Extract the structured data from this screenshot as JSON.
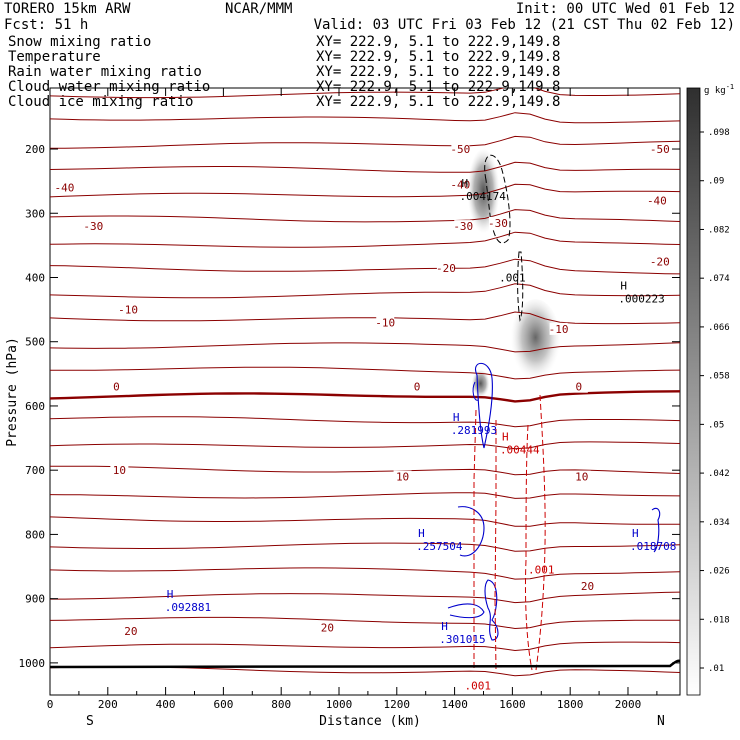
{
  "header": {
    "model": "TORERO  15km ARW",
    "center": "NCAR/MMM",
    "init": "Init: 00 UTC Wed 01 Feb 12",
    "fcst": "Fcst:   51 h",
    "valid": "Valid: 03 UTC Fri 03 Feb 12 (21 CST Thu 02 Feb 12)"
  },
  "fields": [
    {
      "name": "Snow mixing ratio",
      "xy": "XY= 222.9,  5.1 to 222.9,149.8",
      "color": "#000000",
      "xy_color": "#000000"
    },
    {
      "name": "Temperature",
      "xy": "XY= 222.9,  5.1 to 222.9,149.8",
      "color": "#8b0000",
      "xy_color": "#cc0000"
    },
    {
      "name": "Rain water mixing ratio",
      "xy": "XY= 222.9,  5.1 to 222.9,149.8",
      "color": "#cc0000",
      "xy_color": "#cc0000"
    },
    {
      "name": "Cloud water mixing ratio",
      "xy": "XY= 222.9,  5.1 to 222.9,149.8",
      "color": "#0000cc",
      "xy_color": "#0000cc"
    },
    {
      "name": "Cloud ice mixing ratio",
      "xy": "XY= 222.9,  5.1 to 222.9,149.8",
      "color": "#000000",
      "xy_color": "#000000"
    }
  ],
  "chart_data": {
    "type": "cross-section",
    "xlabel": "Distance (km)",
    "ylabel": "Pressure (hPa)",
    "xlim": [
      0,
      2180
    ],
    "ylim": [
      1050,
      105
    ],
    "x_ticks": [
      0,
      200,
      400,
      600,
      800,
      1000,
      1200,
      1400,
      1600,
      1800,
      2000
    ],
    "y_ticks": [
      1000,
      900,
      800,
      700,
      600,
      500,
      400,
      300,
      200
    ],
    "endpoints": {
      "left": "S",
      "right": "N"
    },
    "colorbar": {
      "unit": "g kg",
      "unit_exp": "-1",
      "ticks": [
        ".098",
        ".09",
        ".082",
        ".074",
        ".066",
        ".058",
        ".05",
        ".042",
        ".034",
        ".026",
        ".018",
        ".01"
      ]
    },
    "temperature_contours": {
      "color": "#8b0000",
      "labels": [
        {
          "text": "-50",
          "x": 1420,
          "p": 200
        },
        {
          "text": "-50",
          "x": 2110,
          "p": 200
        },
        {
          "text": "-40",
          "x": 50,
          "p": 260
        },
        {
          "text": "-40",
          "x": 1420,
          "p": 255
        },
        {
          "text": "-40",
          "x": 2100,
          "p": 280
        },
        {
          "text": "-30",
          "x": 150,
          "p": 320
        },
        {
          "text": "-30",
          "x": 1430,
          "p": 320
        },
        {
          "text": "-30",
          "x": 1550,
          "p": 315
        },
        {
          "text": "-20",
          "x": 1370,
          "p": 385
        },
        {
          "text": "-20",
          "x": 2110,
          "p": 375
        },
        {
          "text": "-10",
          "x": 270,
          "p": 450
        },
        {
          "text": "-10",
          "x": 1160,
          "p": 470
        },
        {
          "text": "-10",
          "x": 1760,
          "p": 480
        },
        {
          "text": "0",
          "x": 230,
          "p": 570
        },
        {
          "text": "0",
          "x": 1270,
          "p": 570
        },
        {
          "text": "0",
          "x": 1830,
          "p": 570
        },
        {
          "text": "10",
          "x": 240,
          "p": 700
        },
        {
          "text": "10",
          "x": 1220,
          "p": 710
        },
        {
          "text": "10",
          "x": 1840,
          "p": 710
        },
        {
          "text": "20",
          "x": 280,
          "p": 950
        },
        {
          "text": "20",
          "x": 960,
          "p": 945
        },
        {
          "text": "20",
          "x": 1860,
          "p": 880
        }
      ]
    },
    "maxima": [
      {
        "text": ".004174",
        "x": 1500,
        "p": 265,
        "color": "#000000"
      },
      {
        "text": ".000223",
        "x": 2050,
        "p": 425,
        "color": "#000000"
      },
      {
        "text": ".281993",
        "x": 1470,
        "p": 630,
        "color": "#0000cc"
      },
      {
        "text": ".00444",
        "x": 1640,
        "p": 660,
        "color": "#cc0000"
      },
      {
        "text": ".257504",
        "x": 1350,
        "p": 810,
        "color": "#0000cc"
      },
      {
        "text": ".018708",
        "x": 2090,
        "p": 810,
        "color": "#0000cc"
      },
      {
        "text": ".092881",
        "x": 480,
        "p": 905,
        "color": "#0000cc"
      },
      {
        "text": ".301015",
        "x": 1430,
        "p": 955,
        "color": "#0000cc"
      }
    ],
    "other_labels": [
      {
        "text": ".001",
        "x": 1600,
        "p": 400,
        "color": "#000000"
      },
      {
        "text": ".001",
        "x": 1700,
        "p": 855,
        "color": "#cc0000"
      },
      {
        "text": ".001",
        "x": 1480,
        "p": 1035,
        "color": "#cc0000"
      }
    ]
  }
}
